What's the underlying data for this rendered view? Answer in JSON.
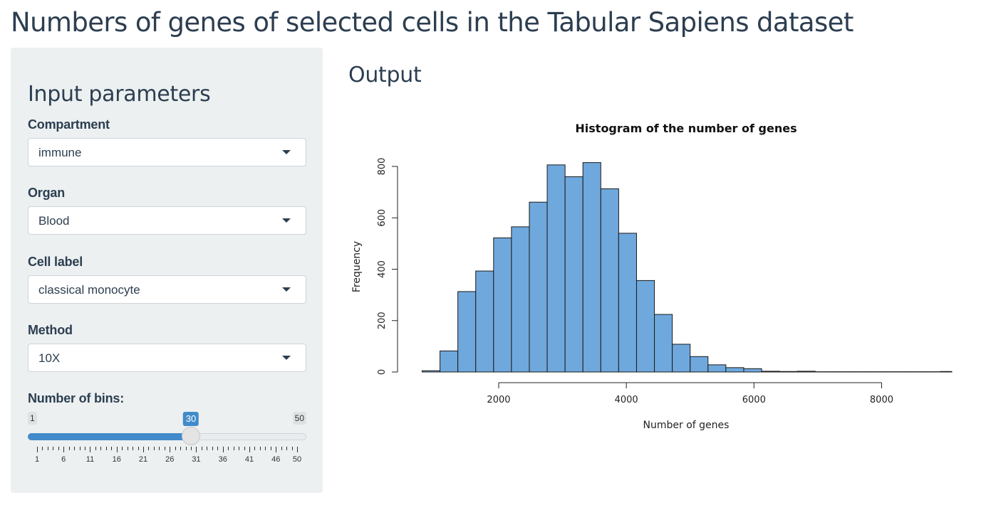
{
  "page": {
    "title": "Numbers of genes of selected cells in the Tabular Sapiens dataset"
  },
  "sidebar": {
    "heading": "Input parameters",
    "compartment": {
      "label": "Compartment",
      "value": "immune"
    },
    "organ": {
      "label": "Organ",
      "value": "Blood"
    },
    "cell_label": {
      "label": "Cell label",
      "value": "classical monocyte"
    },
    "method": {
      "label": "Method",
      "value": "10X"
    },
    "bins": {
      "label": "Number of bins:",
      "min": 1,
      "max": 50,
      "value": 30,
      "min_label": "1",
      "max_label": "50",
      "value_label": "30",
      "ticks": [
        "1",
        "6",
        "11",
        "16",
        "21",
        "26",
        "31",
        "36",
        "41",
        "46",
        "50"
      ]
    }
  },
  "main": {
    "heading": "Output"
  },
  "colors": {
    "accent": "#428bca",
    "bar_fill": "#6fa8dc",
    "bar_stroke": "#1a1a1a",
    "sidebar_bg": "#ecf0f1",
    "text": "#2c3e50"
  },
  "chart_data": {
    "type": "bar",
    "title": "Histogram of the number of genes",
    "xlabel": "Number of genes",
    "ylabel": "Frequency",
    "xlim": [
      750,
      9100
    ],
    "ylim": [
      0,
      800
    ],
    "x_ticks": [
      2000,
      4000,
      6000,
      8000
    ],
    "x_tick_labels": [
      "2000",
      "4000",
      "6000",
      "8000"
    ],
    "y_ticks": [
      0,
      200,
      400,
      600,
      800
    ],
    "y_tick_labels": [
      "0",
      "200",
      "400",
      "600",
      "800"
    ],
    "bin_edges": [
      800,
      1080,
      1360,
      1640,
      1920,
      2200,
      2480,
      2760,
      3040,
      3320,
      3600,
      3880,
      4160,
      4440,
      4720,
      5000,
      5280,
      5560,
      5840,
      6120,
      6400,
      6680,
      6960,
      7240,
      7520,
      7800,
      8080,
      8360,
      8640,
      8920,
      9100
    ],
    "values": [
      5,
      82,
      313,
      393,
      522,
      565,
      661,
      806,
      760,
      815,
      713,
      540,
      356,
      224,
      108,
      60,
      28,
      17,
      13,
      3,
      2,
      3,
      1,
      1,
      1,
      1,
      1,
      1,
      1,
      2
    ],
    "grid": false,
    "legend": "none"
  }
}
